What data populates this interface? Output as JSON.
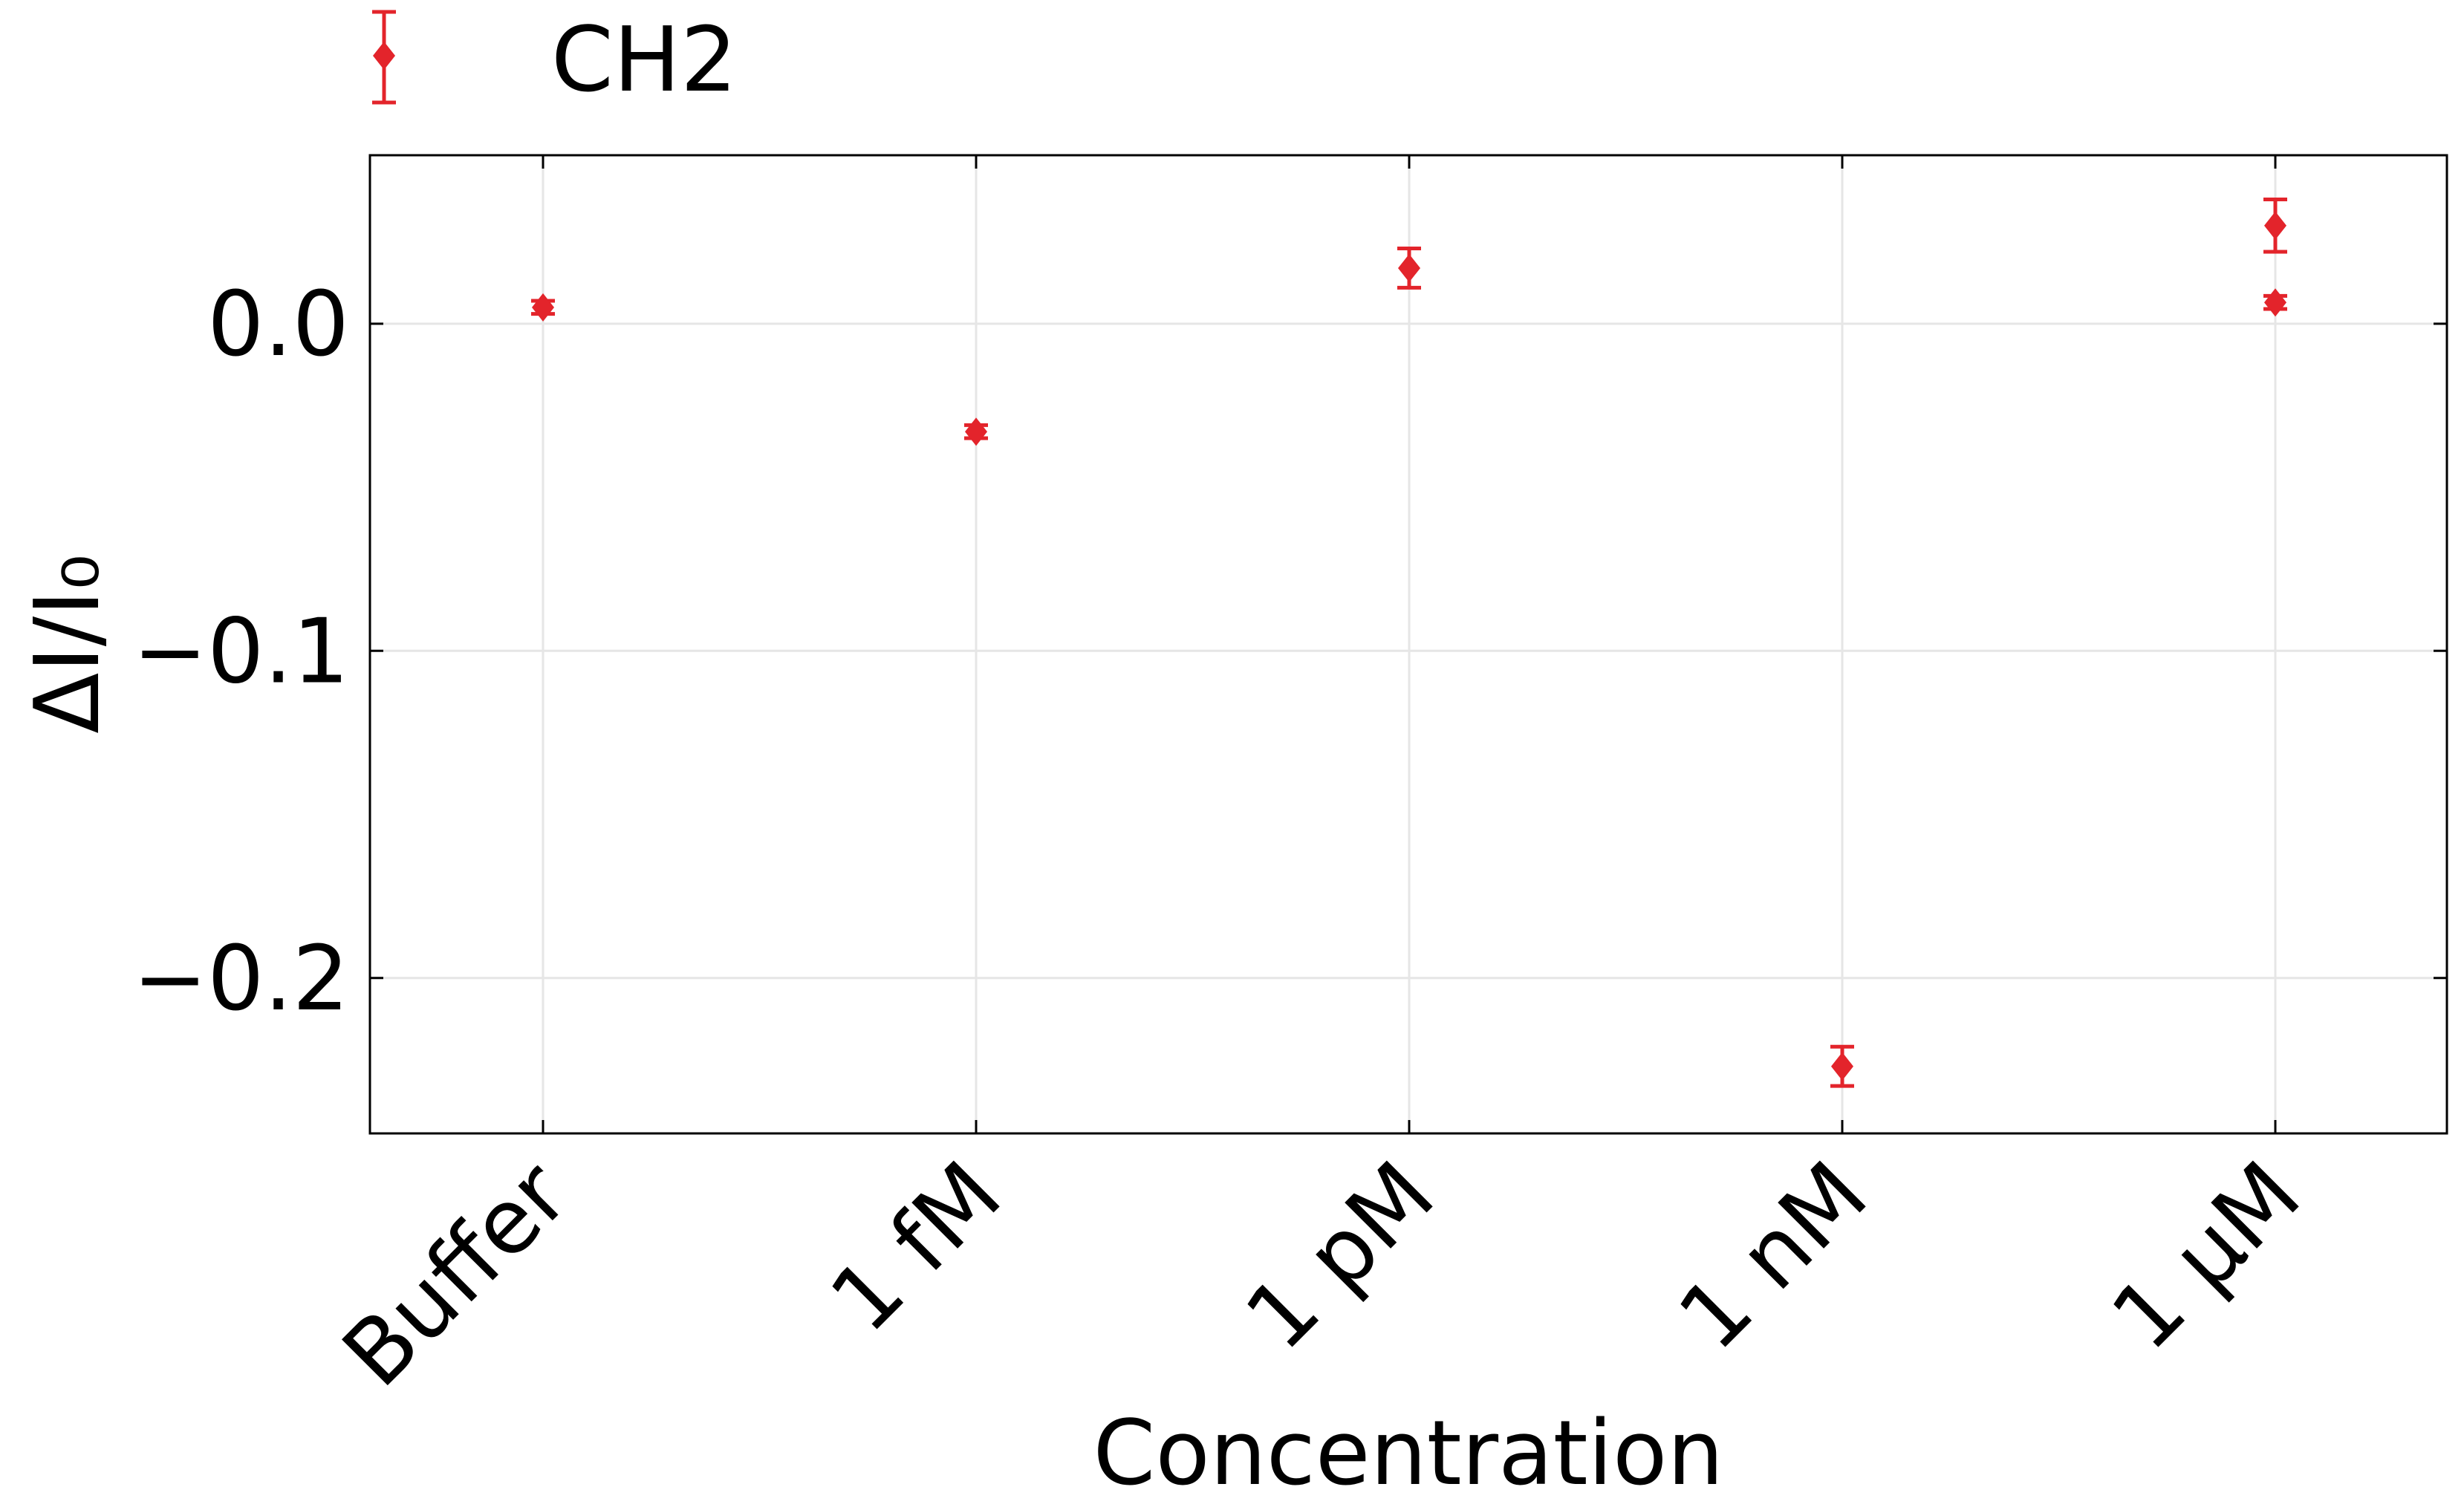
{
  "chart_data": {
    "type": "scatter",
    "title": "",
    "xlabel": "Concentration",
    "ylabel": "ΔI/I₀",
    "categories": [
      "Buffer",
      "1 fM",
      "1 pM",
      "1 nM",
      "1 μM"
    ],
    "yticks": [
      0.0,
      -0.1,
      -0.2
    ],
    "ytick_labels": [
      "0.0",
      "−0.1",
      "−0.2"
    ],
    "ylim": [
      -0.2475,
      0.0515
    ],
    "grid": true,
    "legend_position": "top-left, above plot",
    "series": [
      {
        "name": "CH2",
        "color": "#e3242b",
        "marker": "diamond",
        "points": [
          {
            "x": "Buffer",
            "y": 0.005,
            "err": 0.002
          },
          {
            "x": "1 fM",
            "y": -0.033,
            "err": 0.002
          },
          {
            "x": "1 pM",
            "y": 0.017,
            "err": 0.006
          },
          {
            "x": "1 nM",
            "y": -0.227,
            "err": 0.006
          },
          {
            "x": "1 μM",
            "y": 0.03,
            "err": 0.008
          },
          {
            "x": "1 μM",
            "y": 0.0065,
            "err": 0.002
          }
        ]
      }
    ]
  }
}
